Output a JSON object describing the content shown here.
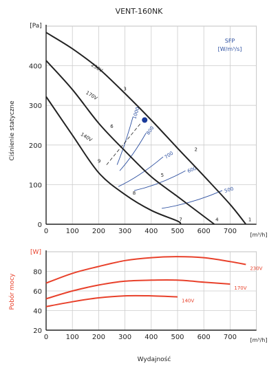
{
  "chart_data": [
    {
      "type": "line",
      "title": "VENT-160NK",
      "ylabel": "Ciśnienie statyczne",
      "xunit": "[m³/h]",
      "yunit": "[Pa]",
      "xlim": [
        0,
        800
      ],
      "ylim": [
        0,
        500
      ],
      "xticks": [
        "0",
        "100",
        "200",
        "300",
        "400",
        "500",
        "600",
        "700"
      ],
      "yticks": [
        "0",
        "100",
        "200",
        "300",
        "400"
      ],
      "grid": true,
      "legend": "SFP\n[W/m³/s]",
      "series": [
        {
          "name": "230V",
          "x": [
            0,
            100,
            200,
            300,
            400,
            500,
            600,
            700,
            760
          ],
          "y": [
            484,
            443,
            393,
            330,
            263,
            192,
            122,
            50,
            0
          ]
        },
        {
          "name": "170V",
          "x": [
            0,
            100,
            200,
            300,
            400,
            500,
            600,
            640
          ],
          "y": [
            413,
            340,
            255,
            185,
            120,
            70,
            20,
            0
          ]
        },
        {
          "name": "140V",
          "x": [
            0,
            100,
            200,
            300,
            400,
            500,
            510
          ],
          "y": [
            322,
            225,
            130,
            75,
            35,
            8,
            0
          ]
        }
      ],
      "sfp_lines": [
        {
          "label": "1000",
          "x": [
            270,
            330
          ],
          "y": [
            150,
            270
          ]
        },
        {
          "label": "800",
          "x": [
            280,
            380
          ],
          "y": [
            135,
            230
          ]
        },
        {
          "label": "700",
          "x": [
            275,
            445
          ],
          "y": [
            95,
            170
          ]
        },
        {
          "label": "600",
          "x": [
            335,
            530
          ],
          "y": [
            85,
            135
          ]
        },
        {
          "label": "500",
          "x": [
            440,
            670
          ],
          "y": [
            40,
            85
          ]
        }
      ],
      "point_labels": [
        {
          "label": "1",
          "x": 775,
          "y": 8
        },
        {
          "label": "2",
          "x": 570,
          "y": 185
        },
        {
          "label": "3",
          "x": 300,
          "y": 338
        },
        {
          "label": "4",
          "x": 650,
          "y": 8
        },
        {
          "label": "5",
          "x": 442,
          "y": 120
        },
        {
          "label": "6",
          "x": 250,
          "y": 243
        },
        {
          "label": "7",
          "x": 512,
          "y": 8
        },
        {
          "label": "8",
          "x": 335,
          "y": 75
        },
        {
          "label": "9",
          "x": 202,
          "y": 155
        }
      ],
      "marker": {
        "x": 375,
        "y": 263,
        "color": "#1a3a9a"
      },
      "colors": {
        "curve": "#222222",
        "sfp": "#2c4fa0",
        "grid": "#cccccc"
      }
    },
    {
      "type": "line",
      "ylabel": "Pobór mocy",
      "xlabel": "Wydajność",
      "xunit": "[m³/h]",
      "yunit": "[W]",
      "xlim": [
        0,
        800
      ],
      "ylim": [
        20,
        100
      ],
      "xticks": [
        "0",
        "100",
        "200",
        "300",
        "400",
        "500",
        "600",
        "700"
      ],
      "yticks": [
        "20",
        "40",
        "60",
        "80"
      ],
      "grid": true,
      "series": [
        {
          "name": "230V",
          "x": [
            0,
            100,
            200,
            300,
            400,
            500,
            600,
            700,
            760
          ],
          "y": [
            68,
            78,
            85,
            91,
            94,
            95,
            94,
            90,
            87
          ]
        },
        {
          "name": "170V",
          "x": [
            0,
            100,
            200,
            300,
            400,
            500,
            600,
            700
          ],
          "y": [
            52,
            60,
            66,
            70,
            71,
            71,
            69,
            67
          ]
        },
        {
          "name": "140V",
          "x": [
            0,
            100,
            200,
            300,
            400,
            500
          ],
          "y": [
            44,
            49,
            53,
            55,
            55,
            54
          ]
        }
      ],
      "colors": {
        "curve": "#e8402a",
        "axis_label": "#e8402a",
        "grid": "#cccccc"
      }
    }
  ]
}
